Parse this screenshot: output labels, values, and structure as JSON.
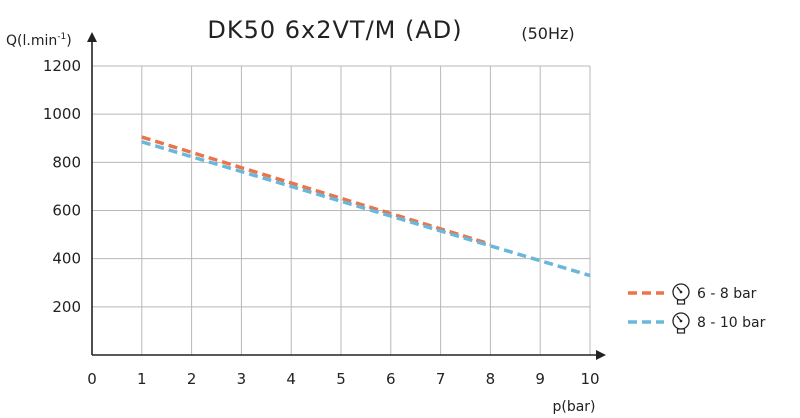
{
  "chart_data": {
    "type": "line",
    "title": "DK50 6x2VT/M (AD)",
    "subtitle": "(50Hz)",
    "xlabel": "p(bar)",
    "ylabel": "Q(l.min",
    "ylabel_sup": "-1",
    "ylabel_close": ")",
    "xlim": [
      0,
      10
    ],
    "ylim": [
      0,
      1200
    ],
    "x_ticks": [
      "0",
      "1",
      "2",
      "3",
      "4",
      "5",
      "6",
      "7",
      "8",
      "9",
      "10"
    ],
    "y_ticks": [
      "200",
      "400",
      "600",
      "800",
      "1000",
      "1200"
    ],
    "grid": true,
    "legend_position": "right",
    "series": [
      {
        "name": "6 - 8 bar",
        "color": "#e8764a",
        "style": "dashed",
        "icon": "pressure-gauge-icon",
        "x": [
          1,
          8
        ],
        "y": [
          905,
          460
        ]
      },
      {
        "name": "8 - 10 bar",
        "color": "#6ab7dc",
        "style": "dashed",
        "icon": "pressure-gauge-icon",
        "x": [
          1,
          10
        ],
        "y": [
          885,
          330
        ]
      }
    ]
  }
}
